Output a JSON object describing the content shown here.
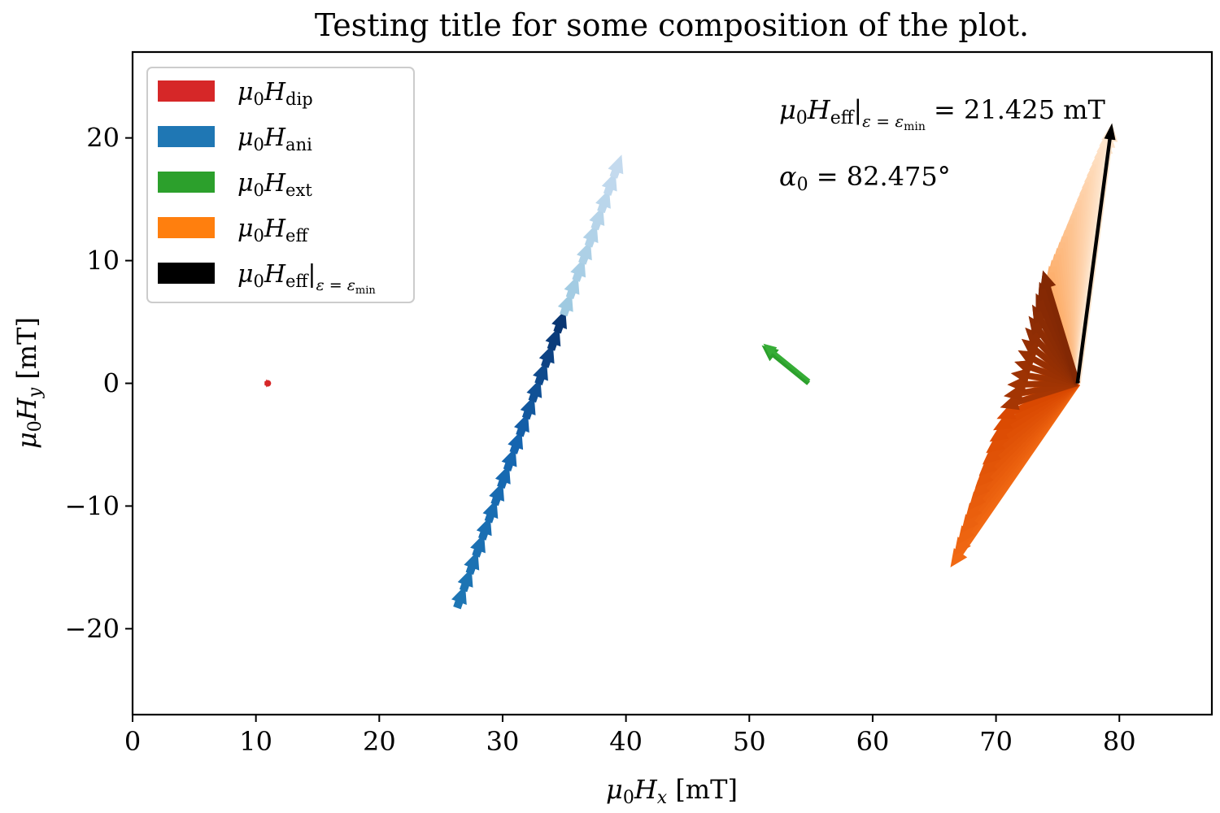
{
  "chart_data": {
    "type": "quiver",
    "title": "Testing title for some composition of the plot.",
    "xlabel": {
      "sym": "μ",
      "sub0": "0",
      "var": "H",
      "subv": "x",
      "unit": "[mT]"
    },
    "ylabel": {
      "sym": "μ",
      "sub0": "0",
      "var": "H",
      "subv": "y",
      "unit": "[mT]"
    },
    "xlim": [
      0,
      87.5
    ],
    "ylim": [
      -27,
      27
    ],
    "xticks": [
      0,
      10,
      20,
      30,
      40,
      50,
      60,
      70,
      80
    ],
    "yticks": [
      -20,
      -10,
      0,
      10,
      20
    ],
    "xtick_labels": [
      "0",
      "10",
      "20",
      "30",
      "40",
      "50",
      "60",
      "70",
      "80"
    ],
    "ytick_labels": [
      "−20",
      "−10",
      "0",
      "10",
      "20"
    ],
    "legend": {
      "placement": "upper-left",
      "entries": [
        {
          "sym": "μ",
          "sub0": "0",
          "var": "H",
          "sub": "dip",
          "color": "#d62728"
        },
        {
          "sym": "μ",
          "sub0": "0",
          "var": "H",
          "sub": "ani",
          "color": "#1f77b4"
        },
        {
          "sym": "μ",
          "sub0": "0",
          "var": "H",
          "sub": "ext",
          "color": "#2ca02c"
        },
        {
          "sym": "μ",
          "sub0": "0",
          "var": "H",
          "sub": "eff",
          "color": "#ff7f0e"
        },
        {
          "sym": "μ",
          "sub0": "0",
          "var": "H",
          "sub": "eff",
          "cond": "ε = ε",
          "cond_sub": "min",
          "color": "#000000"
        }
      ]
    },
    "annotations": {
      "heff_value": "= 21.425 mT",
      "alpha_label": "α",
      "alpha_sub": "0",
      "alpha_value": "= 82.475°"
    },
    "series": {
      "dip": {
        "origin": [
          10.9,
          0.0
        ],
        "tip": [
          11.1,
          0.0
        ],
        "color": "#d62728"
      },
      "ani": {
        "from": [
          26.3,
          -18.3
        ],
        "to": [
          39.5,
          18.2
        ],
        "highlight_to": [
          35.0,
          6.0
        ]
      },
      "ext": {
        "origin": [
          54.8,
          0.0
        ],
        "tip": [
          51.0,
          3.1
        ],
        "color": "#2ca02c"
      },
      "eff": {
        "origin": [
          76.6,
          0.0
        ],
        "tip_from": [
          66.5,
          -15.0
        ],
        "tip_to": [
          79.4,
          21.2
        ],
        "min_tip": [
          79.4,
          21.2
        ],
        "min_color": "#000000"
      }
    }
  }
}
